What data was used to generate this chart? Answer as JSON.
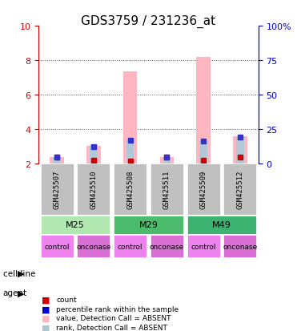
{
  "title": "GDS3759 / 231236_at",
  "samples": [
    "GSM425507",
    "GSM425510",
    "GSM425508",
    "GSM425511",
    "GSM425509",
    "GSM425512"
  ],
  "cell_lines": [
    {
      "label": "M25",
      "span": 2,
      "color": "#90ee90"
    },
    {
      "label": "M29",
      "span": 2,
      "color": "#3cb371"
    },
    {
      "label": "M49",
      "span": 2,
      "color": "#2ecc40"
    }
  ],
  "agents": [
    "control",
    "onconase",
    "control",
    "onconase",
    "control",
    "onconase"
  ],
  "agent_color": "#da70d6",
  "cell_line_colors": [
    "#90ee90",
    "#90ee90",
    "#3cb371",
    "#3cb371",
    "#32cd32",
    "#32cd32"
  ],
  "ylim_left": [
    2,
    10
  ],
  "ylim_right": [
    0,
    100
  ],
  "yticks_left": [
    2,
    4,
    6,
    8,
    10
  ],
  "yticks_right": [
    0,
    25,
    50,
    75,
    100
  ],
  "ytick_labels_right": [
    "0",
    "25",
    "50",
    "75",
    "100%"
  ],
  "pink_bar_values": [
    2.35,
    3.0,
    7.35,
    2.35,
    8.2,
    3.6
  ],
  "lightblue_bar_values": [
    2.35,
    3.05,
    3.35,
    2.38,
    3.3,
    3.6
  ],
  "red_dot_values": [
    2.35,
    2.2,
    2.15,
    2.35,
    2.2,
    2.35
  ],
  "blue_dot_values": [
    2.35,
    2.95,
    3.35,
    2.36,
    3.28,
    3.55
  ],
  "bar_width": 0.35,
  "legend_items": [
    {
      "color": "#cc0000",
      "label": "count"
    },
    {
      "color": "#0000cc",
      "label": "percentile rank within the sample"
    },
    {
      "color": "#ffb6c1",
      "label": "value, Detection Call = ABSENT"
    },
    {
      "color": "#aec6cf",
      "label": "rank, Detection Call = ABSENT"
    }
  ],
  "title_fontsize": 11,
  "axis_label_fontsize": 8,
  "tick_fontsize": 8,
  "sample_fontsize": 7,
  "left_tick_color": "#cc0000",
  "right_tick_color": "#0000cc",
  "grid_color": "#555555",
  "bar_area_bg": "#ffffff",
  "sample_row_bg": "#c0c0c0"
}
